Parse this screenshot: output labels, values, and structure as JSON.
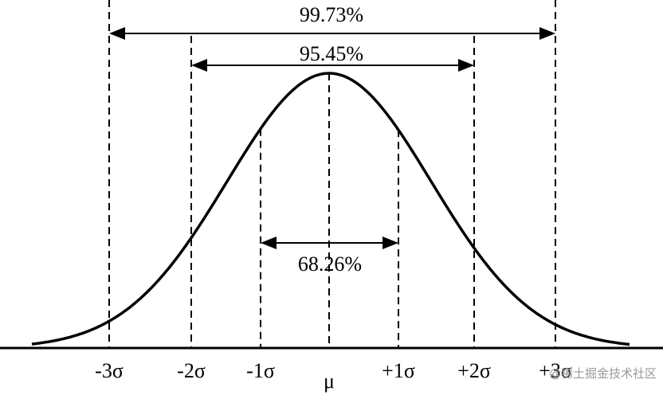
{
  "percentages": {
    "outer": "99.73%",
    "middle": "95.45%",
    "inner": "68.26%"
  },
  "axis_labels": [
    "-3σ",
    "-2σ",
    "-1σ",
    "μ",
    "+1σ",
    "+2σ",
    "+3σ"
  ],
  "watermark": "@稀土掘金技术社区"
}
